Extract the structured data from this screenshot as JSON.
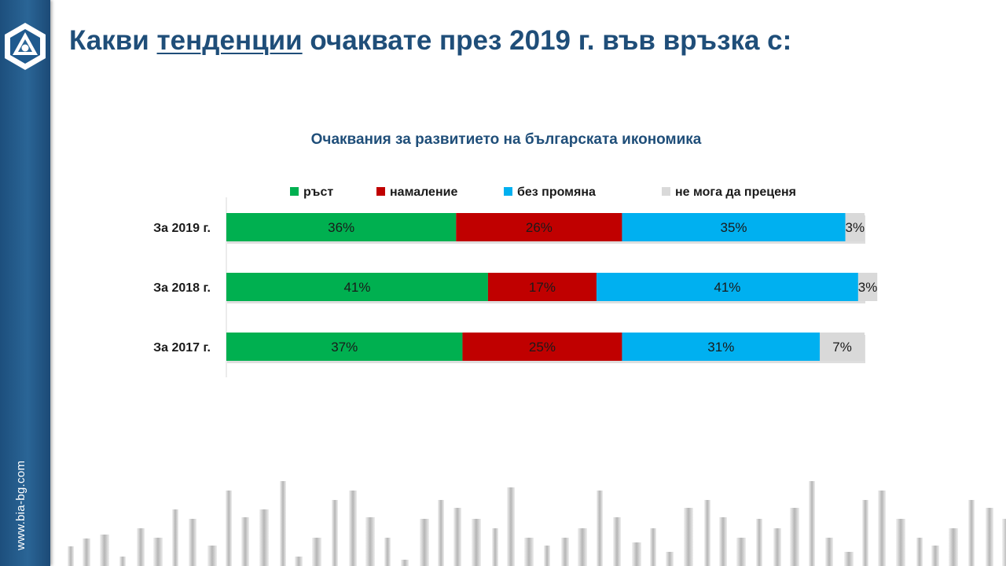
{
  "sidebar": {
    "site_url": "www.bia-bg.com",
    "color": "#1f4e79"
  },
  "header": {
    "title_before": "Какви ",
    "title_underlined": "тенденции",
    "title_after": " очаквате през 2019 г. във връзка с:"
  },
  "chart_data": {
    "type": "bar",
    "orientation": "horizontal",
    "stacked": true,
    "title": "Очаквания за развитието на българската икономика",
    "categories": [
      "За 2019 г.",
      "За 2018 г.",
      "За 2017 г."
    ],
    "series": [
      {
        "name": "ръст",
        "color": "#00b050",
        "values": [
          36,
          41,
          37
        ],
        "labels": [
          "36%",
          "41%",
          "37%"
        ]
      },
      {
        "name": "намаление",
        "color": "#c00000",
        "values": [
          26,
          17,
          25
        ],
        "labels": [
          "26%",
          "17%",
          "25%"
        ]
      },
      {
        "name": "без промяна",
        "color": "#00b0f0",
        "values": [
          35,
          41,
          31
        ],
        "labels": [
          "35%",
          "41%",
          "31%"
        ]
      },
      {
        "name": "не мога да преценя",
        "color": "#d9d9d9",
        "values": [
          3,
          3,
          7
        ],
        "labels": [
          "3%",
          "3%",
          "7%"
        ]
      }
    ],
    "xlim": [
      0,
      100
    ],
    "legend": "top",
    "grid": false
  }
}
